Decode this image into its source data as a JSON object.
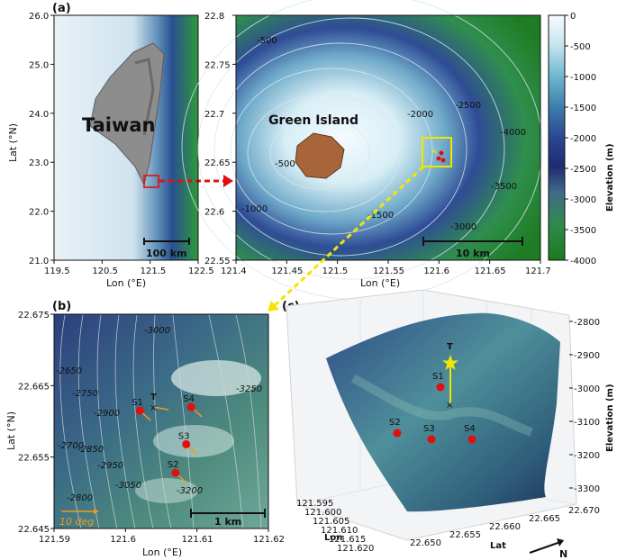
{
  "figure": {
    "panel_a_label": "(a)",
    "panel_b_label": "(b)",
    "panel_c_label": "(c)"
  },
  "map_taiwan": {
    "island_label": "Taiwan",
    "xlabel": "Lon (°E)",
    "ylabel": "Lat (°N)",
    "xticks": [
      "119.5",
      "120.5",
      "121.5",
      "122.5"
    ],
    "yticks": [
      "26.0",
      "25.0",
      "24.0",
      "23.0",
      "22.0",
      "21.0"
    ],
    "scale_bar": "100 km"
  },
  "map_green_island": {
    "island_label": "Green Island",
    "xlabel": "Lon (°E)",
    "xticks": [
      "121.4",
      "121.45",
      "121.5",
      "121.55",
      "121.6",
      "121.65",
      "121.7"
    ],
    "yticks": [
      "22.8",
      "22.75",
      "22.7",
      "22.65",
      "22.6",
      "22.55"
    ],
    "contour_labels": [
      "-500",
      "-500",
      "-1500",
      "-2500",
      "-3500",
      "-2000",
      "-3000",
      "-4000",
      "-1000"
    ],
    "scale_bar": "10 km"
  },
  "colorbar": {
    "label": "Elevation (m)",
    "ticks": [
      "0",
      "-500",
      "-1000",
      "-1500",
      "-2000",
      "-2500",
      "-3000",
      "-3500",
      "-4000"
    ],
    "colors": [
      "#f7fbff",
      "#c6e5ee",
      "#6fb6d0",
      "#3a7cab",
      "#2c4690",
      "#1f2b73",
      "#3f6a88",
      "#2f8a4d",
      "#1d7a1e"
    ]
  },
  "map_zoom": {
    "xlabel": "Lon (°E)",
    "ylabel": "Lat (°N)",
    "xticks": [
      "121.59",
      "121.6",
      "121.61",
      "121.62"
    ],
    "yticks": [
      "22.675",
      "22.665",
      "22.655",
      "22.645"
    ],
    "stations": [
      "S1",
      "S2",
      "S3",
      "S4"
    ],
    "transponder": "T",
    "contour_labels": [
      "-2650",
      "-2750",
      "-2900",
      "-2850",
      "-2950",
      "-3050",
      "-3200",
      "-2800",
      "-2700",
      "-3250",
      "-3000"
    ],
    "scale_bar": "1 km",
    "angle_legend": "10 deg"
  },
  "surface_3d": {
    "zlabel": "Elevation (m)",
    "zticks": [
      "-2800",
      "-2900",
      "-3000",
      "-3100",
      "-3200",
      "-3300"
    ],
    "lon_label": "Lon",
    "lat_label": "Lat",
    "lon_ticks": [
      "121.595",
      "121.600",
      "121.605",
      "121.610",
      "121.615",
      "121.620"
    ],
    "lat_ticks": [
      "22.650",
      "22.655",
      "22.660",
      "22.665",
      "22.670"
    ],
    "north": "N",
    "stations": [
      "S1",
      "S2",
      "S3",
      "S4"
    ],
    "transponder": "T"
  },
  "chart_data": {
    "type": "heatmap",
    "colorbar": {
      "label": "Elevation (m)",
      "range": [
        -4000,
        0
      ]
    },
    "stations": [
      {
        "name": "S1",
        "lon": 121.602,
        "lat": 22.6615
      },
      {
        "name": "S2",
        "lon": 121.607,
        "lat": 22.6528
      },
      {
        "name": "S3",
        "lon": 121.6085,
        "lat": 22.6568
      },
      {
        "name": "S4",
        "lon": 121.6092,
        "lat": 22.662
      }
    ],
    "transponder": {
      "name": "T",
      "lon": 121.604,
      "lat": 22.662
    },
    "panel_a1": {
      "xlim": [
        119.5,
        122.5
      ],
      "ylim": [
        21.0,
        26.0
      ]
    },
    "panel_a2": {
      "xlim": [
        121.4,
        121.7
      ],
      "ylim": [
        22.55,
        22.8
      ]
    },
    "panel_b": {
      "xlim": [
        121.59,
        121.62
      ],
      "ylim": [
        22.645,
        22.675
      ]
    },
    "panel_c": {
      "zlim": [
        -3300,
        -2800
      ]
    }
  }
}
